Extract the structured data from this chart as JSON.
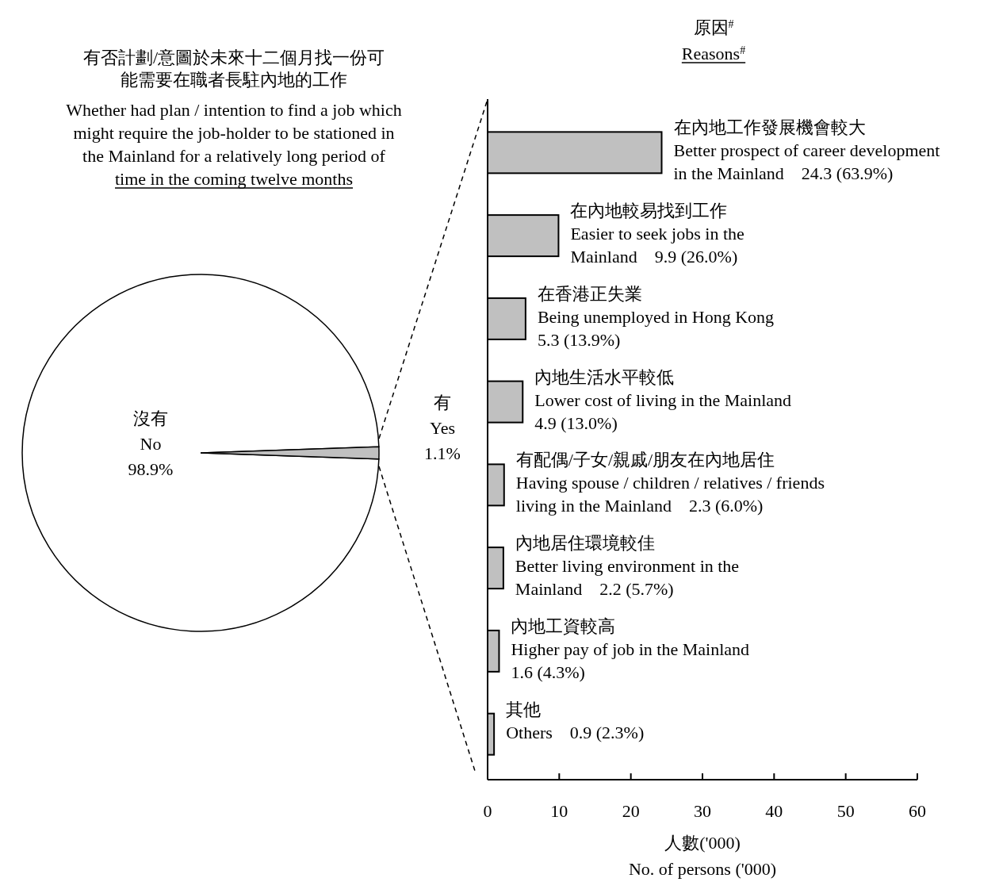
{
  "chart_data": [
    {
      "type": "pie",
      "title": "有否計劃/意圖於未來十二個月找一份可能需要在職者長駐內地的工作",
      "subtitle": "Whether had plan / intention to find a job which\nmight require the job-holder to be stationed in\nthe Mainland for a relatively long period of\ntime in the coming twelve months",
      "categories": [
        "沒有\nNo",
        "有\nYes"
      ],
      "values": [
        98.9,
        1.1
      ],
      "colors": [
        "#ffffff",
        "#c0c0c0"
      ],
      "value_labels": [
        "98.9%",
        "1.1%"
      ]
    },
    {
      "type": "bar",
      "orientation": "horizontal",
      "title": "原因$^{#}$",
      "subtitle": "Reasons$^{#}$",
      "xlabel": "人數('000)\nNo. of persons ('000)",
      "categories": [
        "在內地工作發展機會較大\nBetter prospect of career development\nin the Mainland",
        "在內地較易找到工作\nEasier to seek jobs in the\nMainland",
        "在香港正失業\nBeing unemployed in Hong Kong",
        "內地生活水平較低\nLower cost of living in the Mainland",
        "有配偶/子女/親戚/朋友在內地居住\nHaving spouse / children / relatives / friends\nliving in the Mainland",
        "內地居住環境較佳\nBetter living environment in the\nMainland",
        "內地工資較高\nHigher pay of job in the Mainland",
        "其他\nOthers"
      ],
      "values": [
        24.3,
        9.9,
        5.3,
        4.9,
        2.3,
        2.2,
        1.6,
        0.9
      ],
      "color": "#c0c0c0",
      "value_labels": [
        "24.3 (63.9%)",
        "9.9 (26.0%)",
        "5.3 (13.9%)",
        "4.9 (13.0%)",
        "2.3 (6.0%)",
        "2.2 (5.7%)",
        "1.6 (4.3%)",
        "0.9 (2.3%)"
      ],
      "xlim": [
        0,
        60
      ],
      "xticks": [
        0,
        10,
        20,
        30,
        40,
        50,
        60
      ]
    }
  ]
}
